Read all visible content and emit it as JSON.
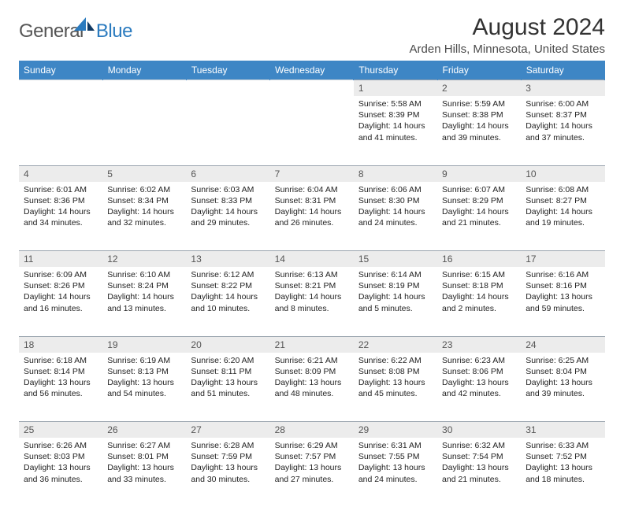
{
  "brand": {
    "general": "General",
    "blue": "Blue"
  },
  "title": "August 2024",
  "location": "Arden Hills, Minnesota, United States",
  "colors": {
    "header_bg": "#3e86c5",
    "header_text": "#ffffff",
    "daynum_bg": "#ececec",
    "border": "#9aa4ae",
    "logo_gray": "#555555",
    "logo_blue": "#2b7bbf"
  },
  "weekdays": [
    "Sunday",
    "Monday",
    "Tuesday",
    "Wednesday",
    "Thursday",
    "Friday",
    "Saturday"
  ],
  "weeks": [
    [
      null,
      null,
      null,
      null,
      {
        "n": "1",
        "sr": "5:58 AM",
        "ss": "8:39 PM",
        "dl": "14 hours and 41 minutes."
      },
      {
        "n": "2",
        "sr": "5:59 AM",
        "ss": "8:38 PM",
        "dl": "14 hours and 39 minutes."
      },
      {
        "n": "3",
        "sr": "6:00 AM",
        "ss": "8:37 PM",
        "dl": "14 hours and 37 minutes."
      }
    ],
    [
      {
        "n": "4",
        "sr": "6:01 AM",
        "ss": "8:36 PM",
        "dl": "14 hours and 34 minutes."
      },
      {
        "n": "5",
        "sr": "6:02 AM",
        "ss": "8:34 PM",
        "dl": "14 hours and 32 minutes."
      },
      {
        "n": "6",
        "sr": "6:03 AM",
        "ss": "8:33 PM",
        "dl": "14 hours and 29 minutes."
      },
      {
        "n": "7",
        "sr": "6:04 AM",
        "ss": "8:31 PM",
        "dl": "14 hours and 26 minutes."
      },
      {
        "n": "8",
        "sr": "6:06 AM",
        "ss": "8:30 PM",
        "dl": "14 hours and 24 minutes."
      },
      {
        "n": "9",
        "sr": "6:07 AM",
        "ss": "8:29 PM",
        "dl": "14 hours and 21 minutes."
      },
      {
        "n": "10",
        "sr": "6:08 AM",
        "ss": "8:27 PM",
        "dl": "14 hours and 19 minutes."
      }
    ],
    [
      {
        "n": "11",
        "sr": "6:09 AM",
        "ss": "8:26 PM",
        "dl": "14 hours and 16 minutes."
      },
      {
        "n": "12",
        "sr": "6:10 AM",
        "ss": "8:24 PM",
        "dl": "14 hours and 13 minutes."
      },
      {
        "n": "13",
        "sr": "6:12 AM",
        "ss": "8:22 PM",
        "dl": "14 hours and 10 minutes."
      },
      {
        "n": "14",
        "sr": "6:13 AM",
        "ss": "8:21 PM",
        "dl": "14 hours and 8 minutes."
      },
      {
        "n": "15",
        "sr": "6:14 AM",
        "ss": "8:19 PM",
        "dl": "14 hours and 5 minutes."
      },
      {
        "n": "16",
        "sr": "6:15 AM",
        "ss": "8:18 PM",
        "dl": "14 hours and 2 minutes."
      },
      {
        "n": "17",
        "sr": "6:16 AM",
        "ss": "8:16 PM",
        "dl": "13 hours and 59 minutes."
      }
    ],
    [
      {
        "n": "18",
        "sr": "6:18 AM",
        "ss": "8:14 PM",
        "dl": "13 hours and 56 minutes."
      },
      {
        "n": "19",
        "sr": "6:19 AM",
        "ss": "8:13 PM",
        "dl": "13 hours and 54 minutes."
      },
      {
        "n": "20",
        "sr": "6:20 AM",
        "ss": "8:11 PM",
        "dl": "13 hours and 51 minutes."
      },
      {
        "n": "21",
        "sr": "6:21 AM",
        "ss": "8:09 PM",
        "dl": "13 hours and 48 minutes."
      },
      {
        "n": "22",
        "sr": "6:22 AM",
        "ss": "8:08 PM",
        "dl": "13 hours and 45 minutes."
      },
      {
        "n": "23",
        "sr": "6:23 AM",
        "ss": "8:06 PM",
        "dl": "13 hours and 42 minutes."
      },
      {
        "n": "24",
        "sr": "6:25 AM",
        "ss": "8:04 PM",
        "dl": "13 hours and 39 minutes."
      }
    ],
    [
      {
        "n": "25",
        "sr": "6:26 AM",
        "ss": "8:03 PM",
        "dl": "13 hours and 36 minutes."
      },
      {
        "n": "26",
        "sr": "6:27 AM",
        "ss": "8:01 PM",
        "dl": "13 hours and 33 minutes."
      },
      {
        "n": "27",
        "sr": "6:28 AM",
        "ss": "7:59 PM",
        "dl": "13 hours and 30 minutes."
      },
      {
        "n": "28",
        "sr": "6:29 AM",
        "ss": "7:57 PM",
        "dl": "13 hours and 27 minutes."
      },
      {
        "n": "29",
        "sr": "6:31 AM",
        "ss": "7:55 PM",
        "dl": "13 hours and 24 minutes."
      },
      {
        "n": "30",
        "sr": "6:32 AM",
        "ss": "7:54 PM",
        "dl": "13 hours and 21 minutes."
      },
      {
        "n": "31",
        "sr": "6:33 AM",
        "ss": "7:52 PM",
        "dl": "13 hours and 18 minutes."
      }
    ]
  ],
  "labels": {
    "sunrise": "Sunrise:",
    "sunset": "Sunset:",
    "daylight": "Daylight:"
  }
}
